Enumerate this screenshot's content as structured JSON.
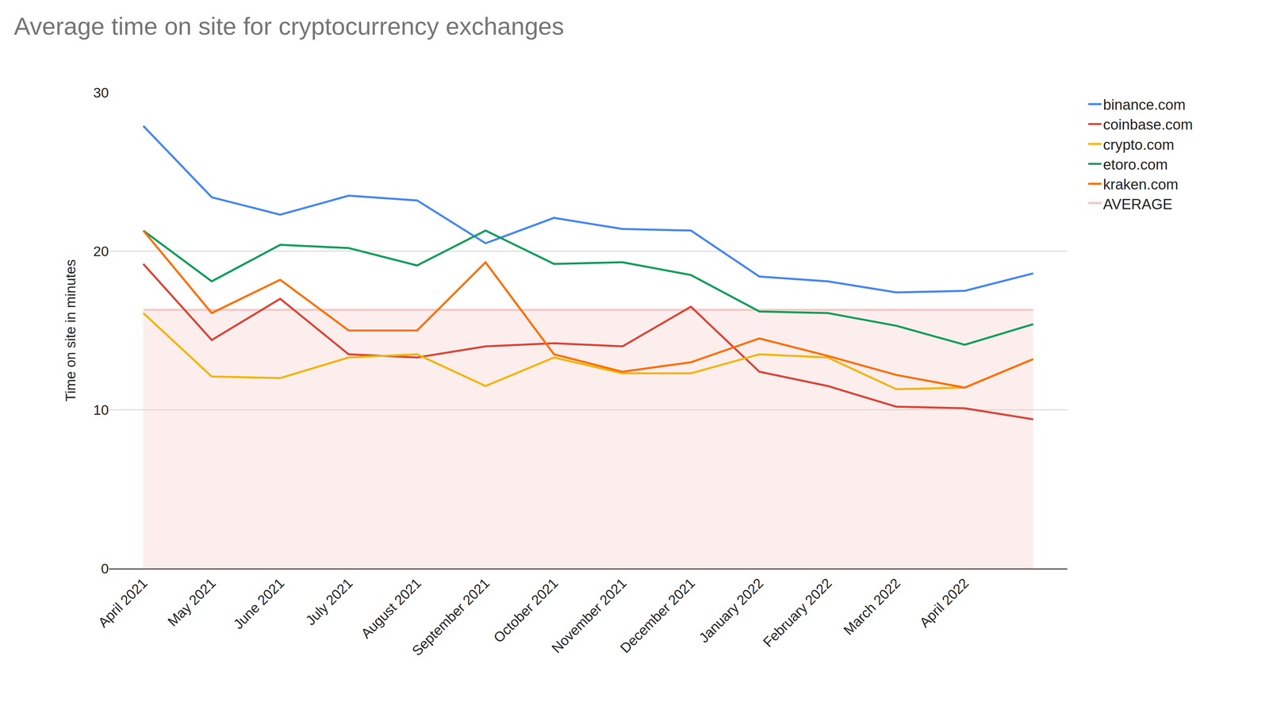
{
  "chart_data": {
    "type": "line",
    "title": "Average time on site for cryptocurrency exchanges",
    "y_label": "Time on site in minutes",
    "categories": [
      "April 2021",
      "May 2021",
      "June 2021",
      "July 2021",
      "August 2021",
      "September 2021",
      "October 2021",
      "November 2021",
      "December 2021",
      "January 2022",
      "February 2022",
      "March 2022",
      "April 2022",
      null
    ],
    "series": [
      {
        "name": "binance.com",
        "color": "#4285f4",
        "values": [
          27.9,
          23.4,
          22.3,
          23.5,
          23.2,
          20.5,
          22.1,
          21.4,
          21.3,
          18.4,
          18.1,
          17.4,
          17.5,
          18.6
        ]
      },
      {
        "name": "coinbase.com",
        "color": "#db4437",
        "values": [
          19.2,
          14.4,
          17.0,
          13.5,
          13.3,
          14.0,
          14.2,
          14.0,
          16.5,
          12.4,
          11.5,
          10.2,
          10.1,
          9.4
        ]
      },
      {
        "name": "crypto.com",
        "color": "#f4b400",
        "values": [
          16.1,
          12.1,
          12.0,
          13.3,
          13.5,
          11.5,
          13.3,
          12.3,
          12.3,
          13.5,
          13.3,
          11.3,
          11.4,
          13.2
        ]
      },
      {
        "name": "etoro.com",
        "color": "#0f9d58",
        "values": [
          21.3,
          18.1,
          20.4,
          20.2,
          19.1,
          21.3,
          19.2,
          19.3,
          18.5,
          16.2,
          16.1,
          15.3,
          14.1,
          15.4
        ]
      },
      {
        "name": "kraken.com",
        "color": "#ff6d01",
        "values": [
          21.3,
          16.1,
          18.2,
          15.0,
          15.0,
          19.3,
          13.5,
          12.4,
          13.0,
          14.5,
          13.4,
          12.2,
          11.4,
          13.2
        ]
      },
      {
        "name": "AVERAGE",
        "type": "area",
        "color": "#f4c7c3",
        "values": [
          16.3,
          16.3,
          16.3,
          16.3,
          16.3,
          16.3,
          16.3,
          16.3,
          16.3,
          16.3,
          16.3,
          16.3,
          16.3,
          16.3
        ]
      }
    ],
    "ylim": [
      0,
      30
    ],
    "yticks": [
      0,
      10,
      20,
      30
    ],
    "grid": true,
    "legend": "right"
  }
}
